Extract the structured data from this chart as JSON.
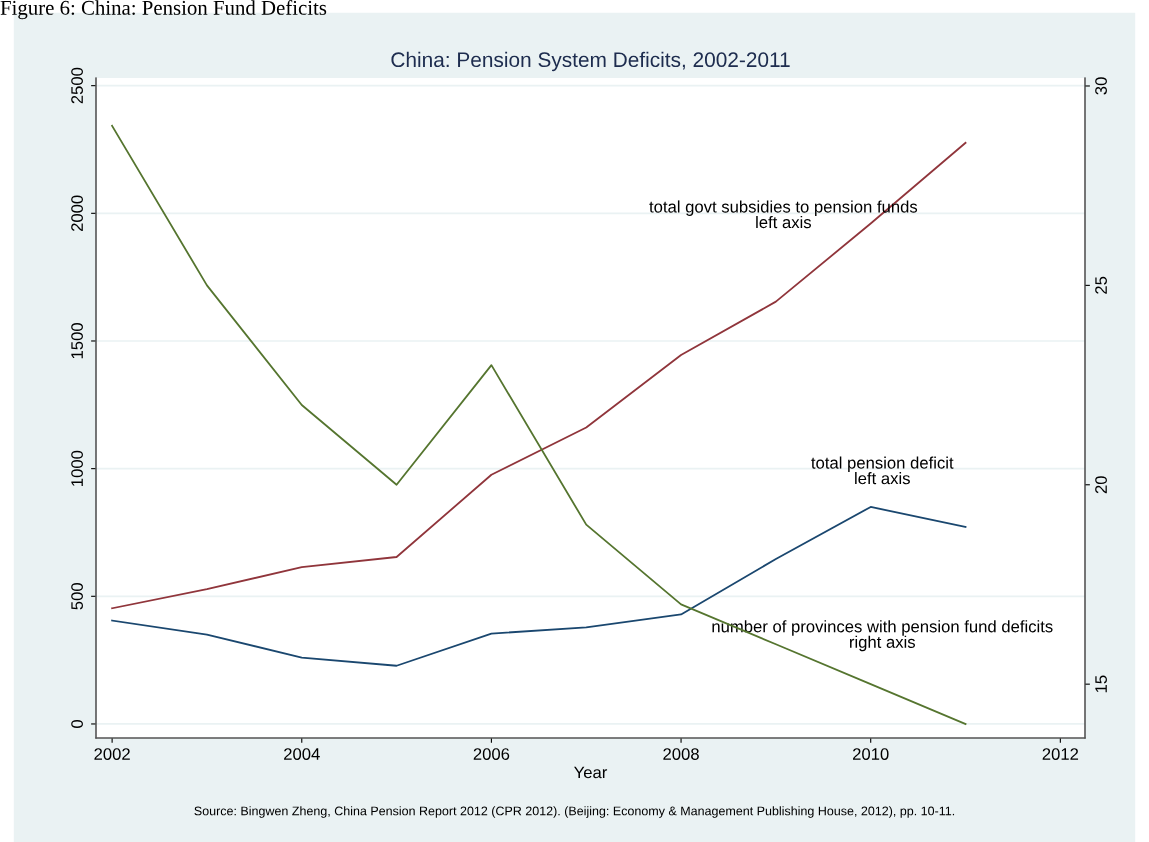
{
  "chart_data": {
    "type": "line",
    "title": "China: Pension System Deficits, 2002-2011",
    "xlabel": "Year",
    "x": [
      2002,
      2003,
      2004,
      2005,
      2006,
      2007,
      2008,
      2009,
      2010,
      2011
    ],
    "series": [
      {
        "color": "#1a476f",
        "values": [
          405,
          350,
          260,
          228,
          354,
          378,
          429,
          646,
          850,
          772
        ]
      },
      {
        "color": "#90353b",
        "values": [
          453,
          528,
          614,
          654,
          976,
          1161,
          1445,
          1654,
          1960,
          2276
        ]
      },
      {
        "color": "#55752f",
        "axis": "y2",
        "values": [
          29,
          25,
          22,
          20,
          23,
          19,
          17,
          16,
          15,
          14
        ]
      }
    ],
    "xlim": [
      2001.83,
      2012.26
    ],
    "xticks": [
      2002,
      2004,
      2006,
      2008,
      2010,
      2012
    ],
    "ylim": [
      -55,
      2530
    ],
    "yticks": [
      0,
      500,
      1000,
      1500,
      2000,
      2500
    ],
    "y2lim": [
      13.65,
      30.2
    ],
    "y2ticks": [
      15,
      20,
      25,
      30
    ],
    "grid": "y",
    "legend": false,
    "marker": "none",
    "line_style": "solid",
    "annotations": [
      "total govt subsidies to pension funds\nleft axis",
      "total pension deficit\nleft axis",
      "number of provinces with pension fund deficits\nright axis",
      "Source: Bingwen Zheng, China Pension Report 2012 (CPR 2012). (Beijing: Economy & Management Publishing House, 2012), pp. 10-11.",
      "Figure 6: China: Pension Fund Deficits"
    ]
  }
}
